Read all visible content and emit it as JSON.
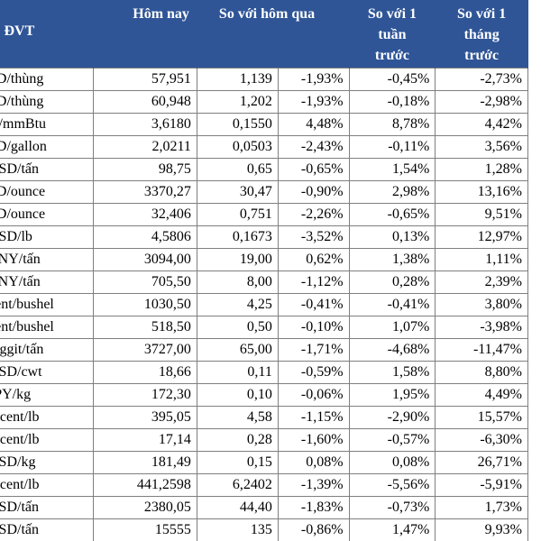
{
  "table": {
    "headers": {
      "unit": "ĐVT",
      "today": "Hôm nay",
      "yesterday": "So với hôm qua",
      "week_line1": "So với 1",
      "week_line2": "tuần",
      "week_line3": "trước",
      "month_line1": "So với 1",
      "month_line2": "tháng",
      "month_line3": "trước"
    },
    "rows": [
      {
        "unit": "SD/thùng",
        "today": "57,951",
        "change": "1,139",
        "pct_day": "-1,93%",
        "pct_week": "-0,45%",
        "pct_month": "-2,73%"
      },
      {
        "unit": "SD/thùng",
        "today": "60,948",
        "change": "1,202",
        "pct_day": "-1,93%",
        "pct_week": "-0,18%",
        "pct_month": "-2,98%"
      },
      {
        "unit": "D/mmBtu",
        "today": "3,6180",
        "change": "0,1550",
        "pct_day": "4,48%",
        "pct_week": "8,78%",
        "pct_month": "4,42%"
      },
      {
        "unit": "SD/gallon",
        "today": "2,0211",
        "change": "0,0503",
        "pct_day": "-2,43%",
        "pct_week": "-0,11%",
        "pct_month": "3,56%"
      },
      {
        "unit": "USD/tấn",
        "today": "98,75",
        "change": "0,65",
        "pct_day": "-0,65%",
        "pct_week": "1,54%",
        "pct_month": "1,28%"
      },
      {
        "unit": "SD/ounce",
        "today": "3370,27",
        "change": "30,47",
        "pct_day": "-0,90%",
        "pct_week": "2,98%",
        "pct_month": "13,16%"
      },
      {
        "unit": "SD/ounce",
        "today": "32,406",
        "change": "0,751",
        "pct_day": "-2,26%",
        "pct_week": "-0,65%",
        "pct_month": "9,51%"
      },
      {
        "unit": "USD/lb",
        "today": "4,5806",
        "change": "0,1673",
        "pct_day": "-3,52%",
        "pct_week": "0,13%",
        "pct_month": "12,97%"
      },
      {
        "unit": "CNY/tấn",
        "today": "3094,00",
        "change": "19,00",
        "pct_day": "0,62%",
        "pct_week": "1,38%",
        "pct_month": "1,11%"
      },
      {
        "unit": "CNY/tấn",
        "today": "705,50",
        "change": "8,00",
        "pct_day": "-1,12%",
        "pct_week": "0,28%",
        "pct_month": "2,39%"
      },
      {
        "unit": "cent/bushel",
        "today": "1030,50",
        "change": "4,25",
        "pct_day": "-0,41%",
        "pct_week": "-0,41%",
        "pct_month": "3,80%"
      },
      {
        "unit": "cent/bushel",
        "today": "518,50",
        "change": "0,50",
        "pct_day": "-0,10%",
        "pct_week": "1,07%",
        "pct_month": "-3,98%"
      },
      {
        "unit": "inggit/tấn",
        "today": "3727,00",
        "change": "65,00",
        "pct_day": "-1,71%",
        "pct_week": "-4,68%",
        "pct_month": "-11,47%"
      },
      {
        "unit": "USD/cwt",
        "today": "18,66",
        "change": "0,11",
        "pct_day": "-0,59%",
        "pct_week": "1,58%",
        "pct_month": "8,80%"
      },
      {
        "unit": "JPY/kg",
        "today": "172,30",
        "change": "0,10",
        "pct_day": "-0,06%",
        "pct_week": "1,95%",
        "pct_month": "4,49%"
      },
      {
        "unit": "S cent/lb",
        "today": "395,05",
        "change": "4,58",
        "pct_day": "-1,15%",
        "pct_week": "-2,90%",
        "pct_month": "15,57%"
      },
      {
        "unit": "S cent/lb",
        "today": "17,14",
        "change": "0,28",
        "pct_day": "-1,60%",
        "pct_week": "-0,57%",
        "pct_month": "-6,30%"
      },
      {
        "unit": "USD/kg",
        "today": "181,49",
        "change": "0,15",
        "pct_day": "0,08%",
        "pct_week": "0,08%",
        "pct_month": "26,71%"
      },
      {
        "unit": "S cent/lb",
        "today": "441,2598",
        "change": "6,2402",
        "pct_day": "-1,39%",
        "pct_week": "-5,56%",
        "pct_month": "-5,91%"
      },
      {
        "unit": "USD/tấn",
        "today": "2380,05",
        "change": "44,40",
        "pct_day": "-1,83%",
        "pct_week": "-0,73%",
        "pct_month": "1,73%"
      },
      {
        "unit": "USD/tấn",
        "today": "15555",
        "change": "135",
        "pct_day": "-0,86%",
        "pct_week": "1,47%",
        "pct_month": "9,93%"
      }
    ]
  },
  "colors": {
    "header_bg": "#2f5597",
    "header_text": "#ffffff",
    "grid": "#7f7f7f"
  }
}
